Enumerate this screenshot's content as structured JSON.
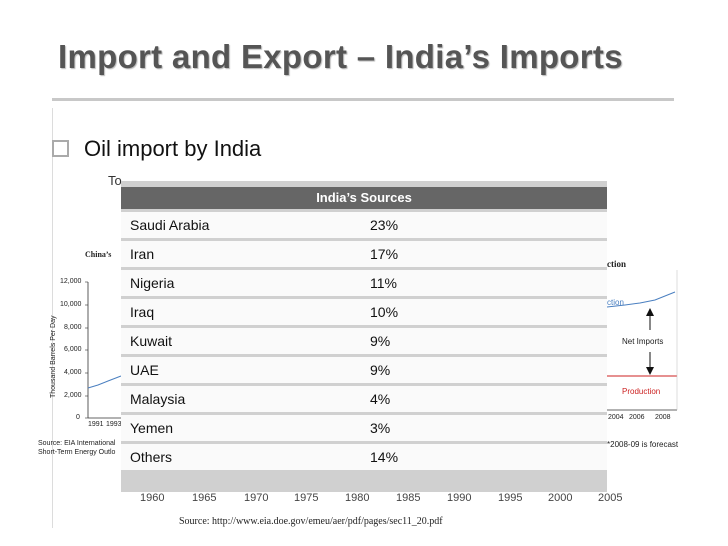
{
  "slide": {
    "title": "Import and Export – India’s Imports",
    "bullet": "Oil import by India"
  },
  "table": {
    "header": "India’s Sources",
    "rows": [
      {
        "country": "Saudi Arabia",
        "share": "23%"
      },
      {
        "country": "Iran",
        "share": "17%"
      },
      {
        "country": "Nigeria",
        "share": "11%"
      },
      {
        "country": "Iraq",
        "share": "10%"
      },
      {
        "country": "Kuwait",
        "share": "9%"
      },
      {
        "country": "UAE",
        "share": "9%"
      },
      {
        "country": "Malaysia",
        "share": "4%"
      },
      {
        "country": "Yemen",
        "share": "3%"
      },
      {
        "country": "Others",
        "share": "14%"
      }
    ]
  },
  "background_chart": {
    "y_axis_label": "Thousand Barrels Per Day",
    "y_ticks": [
      "12,000",
      "10,000",
      "8,000",
      "6,000",
      "4,000",
      "2,000",
      "0"
    ],
    "x_ticks_small": [
      "1991",
      "1993"
    ],
    "x_ticks_right": [
      "2004",
      "2006",
      "2008"
    ],
    "label_net_imports": "Net Imports",
    "label_production": "Production",
    "label_production_top": "ction",
    "label_production_blue": "ction",
    "label_china": "China’s",
    "source_left_1": "Source: EIA International",
    "source_left_2": "Short-Term Energy Outlo",
    "forecast_note": "*2008-09 is forecast",
    "bottom_years": [
      "1960",
      "1965",
      "1970",
      "1975",
      "1980",
      "1985",
      "1990",
      "1995",
      "2000",
      "2005"
    ],
    "source_bottom": "Source: http://www.eia.doe.gov/emeu/aer/pdf/pages/sec11_20.pdf",
    "partial_top_text": "To"
  },
  "colors": {
    "title": "#555555",
    "table_header_bg": "#666666",
    "table_bg": "#d0d0d0",
    "production_line": "#cc2222",
    "net_imports_line": "#4a7fc0"
  }
}
